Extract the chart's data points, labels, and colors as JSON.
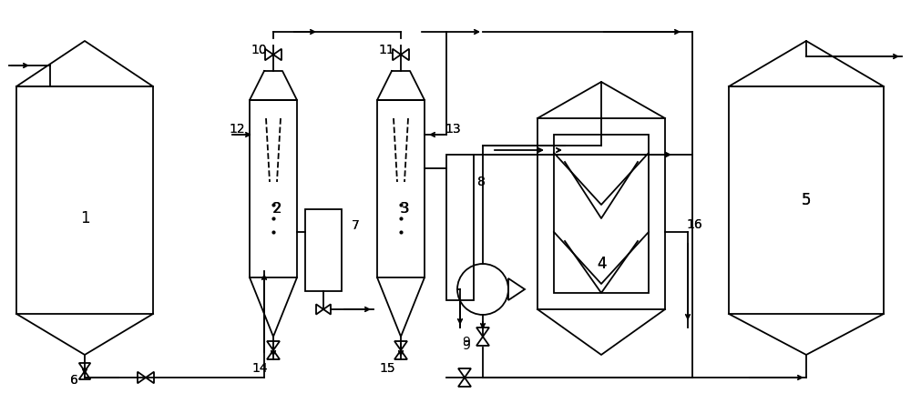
{
  "bg_color": "#ffffff",
  "line_color": "#000000",
  "fig_width": 10.0,
  "fig_height": 4.32,
  "dpi": 100
}
